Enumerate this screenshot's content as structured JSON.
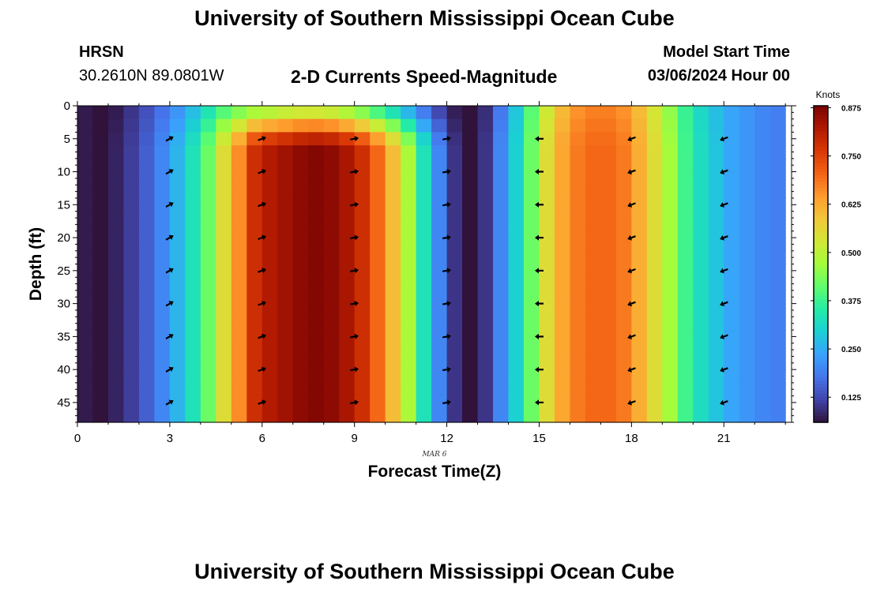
{
  "header": {
    "title": "University of Southern Mississippi Ocean Cube",
    "station": "HRSN",
    "coordinates": "30.2610N  89.0801W",
    "subtitle": "2-D Currents Speed-Magnitude",
    "model_start_label": "Model Start Time",
    "model_start_value": "03/06/2024 Hour 00"
  },
  "footer": {
    "title": "University of Southern Mississippi Ocean Cube"
  },
  "chart_data": {
    "type": "heatmap",
    "xlabel": "Forecast Time(Z)",
    "ylabel": "Depth (ft)",
    "date_label": "MAR 6",
    "xlim": [
      0,
      23.2
    ],
    "ylim": [
      0,
      48
    ],
    "x_ticks": [
      0,
      3,
      6,
      9,
      12,
      15,
      18,
      21
    ],
    "y_ticks": [
      0,
      5,
      10,
      15,
      20,
      25,
      30,
      35,
      40,
      45
    ],
    "colorbar": {
      "label": "Knots",
      "range": [
        0.06,
        0.88
      ],
      "ticks": [
        "0.125",
        "0.250",
        "0.375",
        "0.500",
        "0.625",
        "0.750",
        "0.875"
      ],
      "colormap": [
        "#30123b",
        "#4145ab",
        "#4675ed",
        "#39a2fc",
        "#1bcfd4",
        "#24eca6",
        "#61fc6c",
        "#a4fc3b",
        "#d1e834",
        "#f3c63a",
        "#fe9b2d",
        "#f36315",
        "#d93806",
        "#b11901",
        "#7a0403"
      ]
    },
    "hours": [
      0.5,
      1,
      1.5,
      2,
      2.5,
      3,
      3.5,
      4,
      4.5,
      5,
      5.5,
      6,
      6.5,
      7,
      7.5,
      8,
      8.5,
      9,
      9.5,
      10,
      10.5,
      11,
      11.5,
      12,
      12.5,
      13,
      13.5,
      14,
      14.5,
      15,
      15.5,
      16,
      16.5,
      17,
      17.5,
      18,
      18.5,
      19,
      19.5,
      20,
      20.5,
      21,
      21.5,
      22,
      22.5,
      23
    ],
    "speed_knots_by_hour": [
      0.07,
      0.06,
      0.08,
      0.11,
      0.15,
      0.2,
      0.26,
      0.33,
      0.42,
      0.55,
      0.66,
      0.78,
      0.82,
      0.84,
      0.86,
      0.87,
      0.86,
      0.83,
      0.78,
      0.7,
      0.6,
      0.48,
      0.33,
      0.2,
      0.1,
      0.06,
      0.1,
      0.2,
      0.3,
      0.42,
      0.55,
      0.63,
      0.68,
      0.7,
      0.7,
      0.68,
      0.62,
      0.55,
      0.47,
      0.38,
      0.32,
      0.28,
      0.24,
      0.22,
      0.2,
      0.19
    ],
    "surface_speed_knots_by_hour": [
      0.07,
      0.06,
      0.07,
      0.1,
      0.13,
      0.17,
      0.21,
      0.26,
      0.32,
      0.37,
      0.4,
      0.42,
      0.43,
      0.45,
      0.46,
      0.46,
      0.45,
      0.42,
      0.38,
      0.33,
      0.28,
      0.22,
      0.16,
      0.11,
      0.07,
      0.06,
      0.09,
      0.18,
      0.28,
      0.4,
      0.52,
      0.6,
      0.65,
      0.67,
      0.67,
      0.65,
      0.6,
      0.53,
      0.45,
      0.37,
      0.31,
      0.27,
      0.24,
      0.22,
      0.2,
      0.19
    ],
    "vectors": {
      "hours": [
        3,
        6,
        9,
        12,
        15,
        18,
        21
      ],
      "depths_ft": [
        5,
        10,
        15,
        20,
        25,
        30,
        35,
        40,
        45
      ],
      "direction_to_deg": [
        60,
        70,
        80,
        80,
        270,
        250,
        250
      ]
    }
  }
}
